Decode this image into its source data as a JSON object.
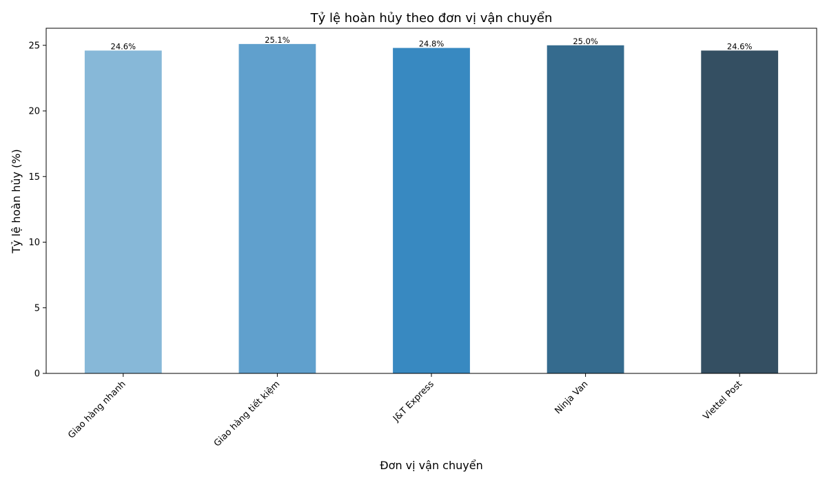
{
  "chart_data": {
    "type": "bar",
    "title": "Tỷ lệ hoàn hủy theo đơn vị vận chuyển",
    "xlabel": "Đơn vị vận chuyển",
    "ylabel": "Tỷ lệ hoàn hủy (%)",
    "categories": [
      "Giao hàng nhanh",
      "Giao hàng tiết kiệm",
      "J&T Express",
      "Ninja Van",
      "Viettel Post"
    ],
    "values": [
      24.6,
      25.1,
      24.8,
      25.0,
      24.6
    ],
    "data_labels": [
      "24.6%",
      "25.1%",
      "24.8%",
      "25.0%",
      "24.6%"
    ],
    "colors": [
      "#87b8d8",
      "#60a0cd",
      "#3889c1",
      "#356b8e",
      "#344f62"
    ],
    "ylim": [
      0,
      26.3
    ],
    "yticks": [
      0,
      5,
      10,
      15,
      20,
      25
    ],
    "grid": false,
    "legend": "none"
  }
}
